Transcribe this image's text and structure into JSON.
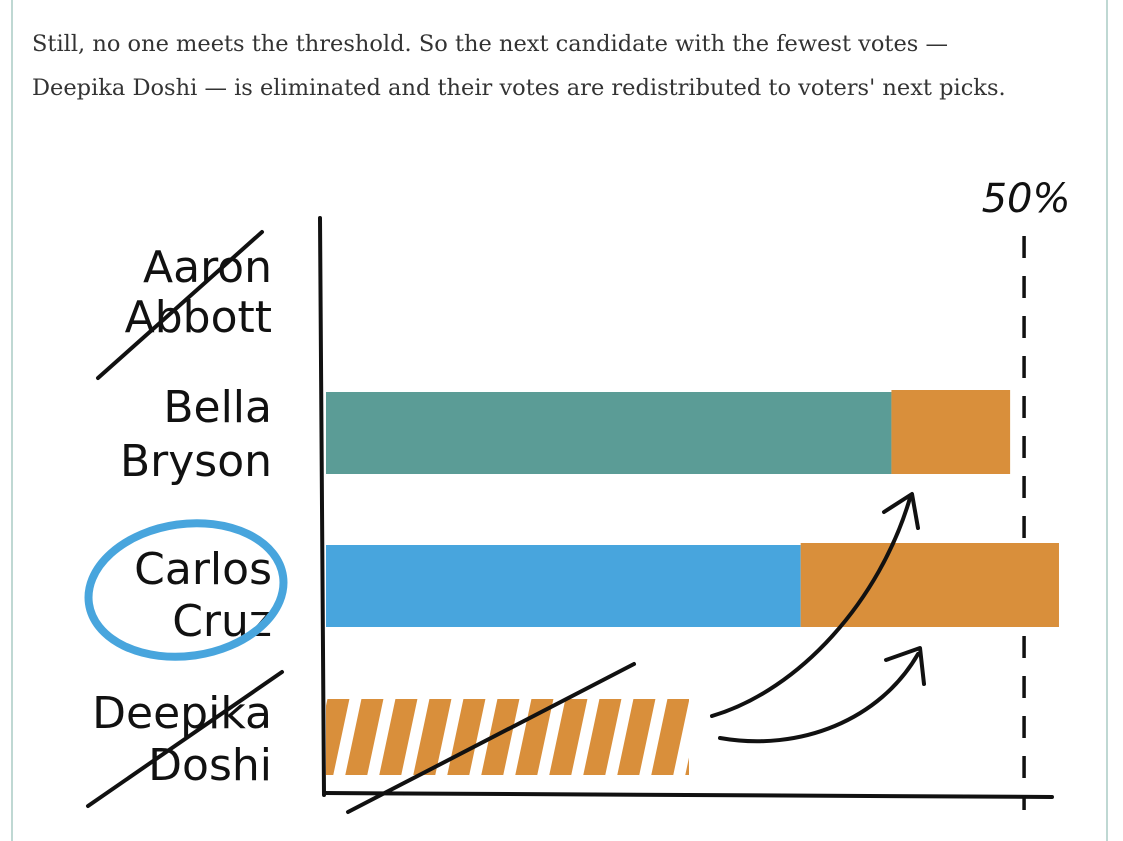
{
  "caption": {
    "line1": "Still, no one meets the threshold. So the next candidate with the fewest votes —",
    "line2": "Deepika Doshi — is eliminated and their votes are redistributed to voters' next picks."
  },
  "colors": {
    "bella": "#5b9c96",
    "carlos": "#48a5dd",
    "redistributed": "#d98f3b",
    "ink": "#111111",
    "circle": "#48a5dd"
  },
  "chart_data": {
    "type": "bar",
    "orientation": "horizontal",
    "stacked": true,
    "threshold_label": "50%",
    "threshold_value": 50,
    "xlim": [
      0,
      52
    ],
    "categories": [
      {
        "first": "Aaron",
        "last": "Abbott",
        "eliminated": true,
        "winner": false
      },
      {
        "first": "Bella",
        "last": "Bryson",
        "eliminated": false,
        "winner": false
      },
      {
        "first": "Carlos",
        "last": "Cruz",
        "eliminated": false,
        "winner": true
      },
      {
        "first": "Deepika",
        "last": "Doshi",
        "eliminated": true,
        "winner": false
      }
    ],
    "series": [
      {
        "key": "original",
        "values": [
          0,
          40.5,
          34,
          26
        ]
      },
      {
        "key": "redistributed",
        "values": [
          0,
          8.5,
          18.5,
          0
        ]
      }
    ],
    "eliminated_striped_value": 26
  }
}
